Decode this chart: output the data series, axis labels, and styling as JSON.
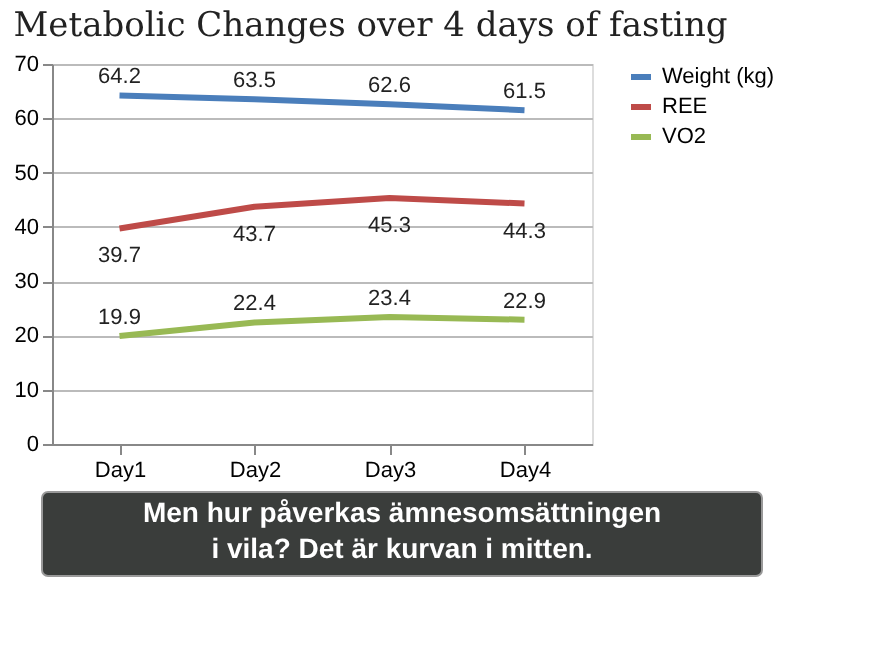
{
  "chart_data": {
    "type": "line",
    "title": "Metabolic Changes over 4 days of fasting",
    "categories": [
      "Day1",
      "Day2",
      "Day3",
      "Day4"
    ],
    "series": [
      {
        "name": "Weight (kg)",
        "color": "#4a7ebb",
        "values": [
          64.2,
          63.5,
          62.6,
          61.5
        ]
      },
      {
        "name": "REE",
        "color": "#be4b48",
        "values": [
          39.7,
          43.7,
          45.3,
          44.3
        ]
      },
      {
        "name": "VO2",
        "color": "#98b954",
        "values": [
          19.9,
          22.4,
          23.4,
          22.9
        ]
      }
    ],
    "ylim": [
      0,
      70
    ],
    "yticks": [
      0,
      10,
      20,
      30,
      40,
      50,
      60,
      70
    ],
    "grid": "y",
    "legend": "right",
    "data_labels": true,
    "marker": "none",
    "annotations": [
      "Men hur påverkas ämnesomsättningen i vila? Det är kurvan i mitten."
    ]
  }
}
